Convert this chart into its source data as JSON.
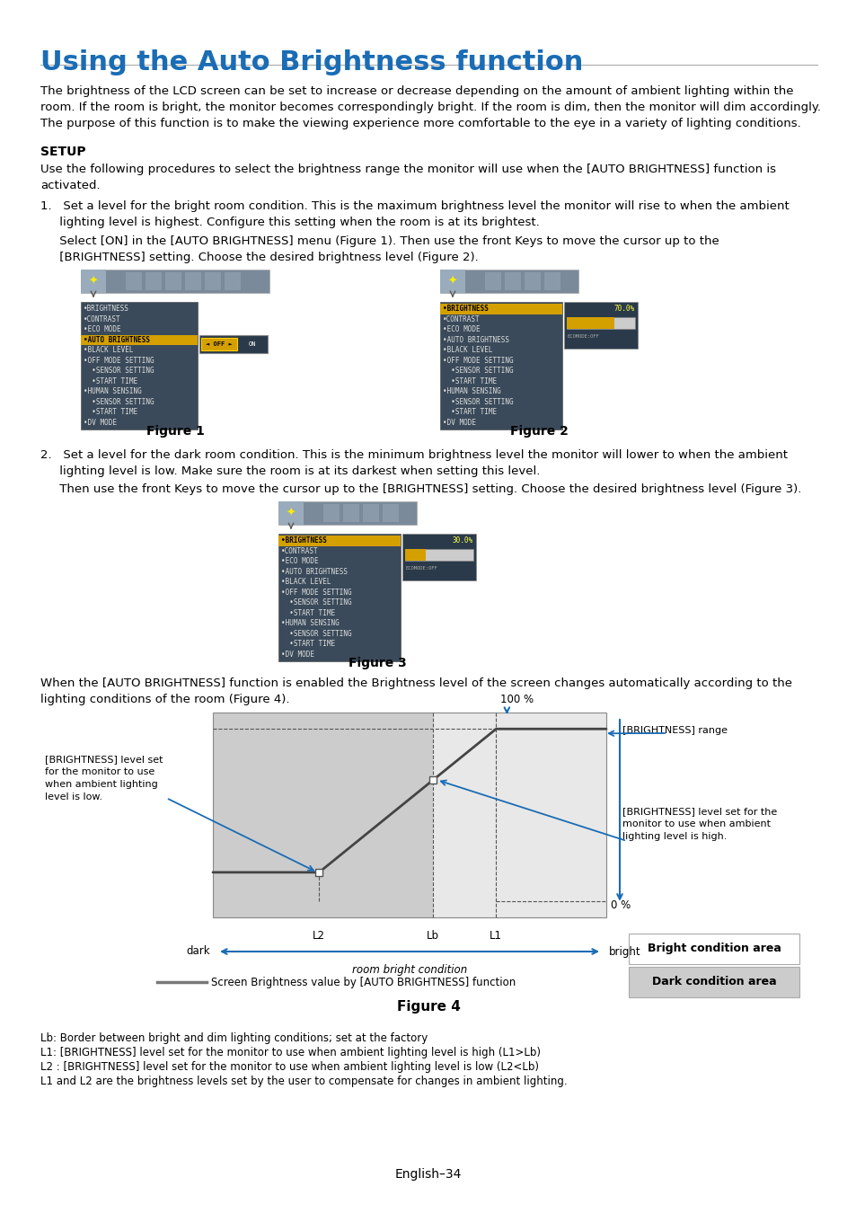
{
  "title": "Using the Auto Brightness function",
  "title_color": "#1a6cb5",
  "title_fontsize": 22,
  "body_fontsize": 9.5,
  "body_color": "#000000",
  "bg_color": "#ffffff",
  "separator_color": "#888888",
  "intro_text1": "The brightness of the LCD screen can be set to increase or decrease depending on the amount of ambient lighting within the",
  "intro_text2": "room. If the room is bright, the monitor becomes correspondingly bright. If the room is dim, then the monitor will dim accordingly.",
  "intro_text3": "The purpose of this function is to make the viewing experience more comfortable to the eye in a variety of lighting conditions.",
  "setup_header": "SETUP",
  "setup_text1": "Use the following procedures to select the brightness range the monitor will use when the [AUTO BRIGHTNESS] function is",
  "setup_text2": "activated.",
  "step1_line1": "1.   Set a level for the bright room condition. This is the maximum brightness level the monitor will rise to when the ambient",
  "step1_line2": "     lighting level is highest. Configure this setting when the room is at its brightest.",
  "step1b_line1": "     Select [ON] in the [AUTO BRIGHTNESS] menu (Figure 1). Then use the front Keys to move the cursor up to the",
  "step1b_line2": "     [BRIGHTNESS] setting. Choose the desired brightness level (Figure 2).",
  "step2_line1": "2.   Set a level for the dark room condition. This is the minimum brightness level the monitor will lower to when the ambient",
  "step2_line2": "     lighting level is low. Make sure the room is at its darkest when setting this level.",
  "step2b_line1": "     Then use the front Keys to move the cursor up to the [BRIGHTNESS] setting. Choose the desired brightness level (Figure 3).",
  "figure4_text1": "When the [AUTO BRIGHTNESS] function is enabled the Brightness level of the screen changes automatically according to the",
  "figure4_text2": "lighting conditions of the room (Figure 4).",
  "footer_text": "English–34",
  "notes_line1": "Lb: Border between bright and dim lighting conditions; set at the factory",
  "notes_line2": "L1: [BRIGHTNESS] level set for the monitor to use when ambient lighting level is high (L1>Lb)",
  "notes_line3": "L2 : [BRIGHTNESS] level set for the monitor to use when ambient lighting level is low (L2<Lb)",
  "notes_line4": "L1 and L2 are the brightness levels set by the user to compensate for changes in ambient lighting.",
  "menu_dark_bg": "#3a4a5a",
  "menu_darker_bg": "#2a3a4a",
  "menu_highlight": "#d4a000",
  "menu_text_color": "#dddddd",
  "menu_hi_text": "#ffffff",
  "icon_bar_color": "#7a8a9a"
}
